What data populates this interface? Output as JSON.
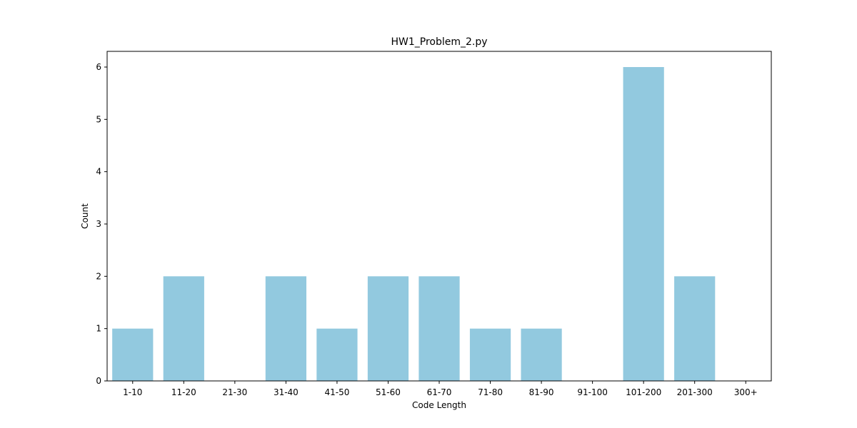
{
  "chart_data": {
    "type": "bar",
    "title": "HW1_Problem_2.py",
    "xlabel": "Code Length",
    "ylabel": "Count",
    "categories": [
      "1-10",
      "11-20",
      "21-30",
      "31-40",
      "41-50",
      "51-60",
      "61-70",
      "71-80",
      "81-90",
      "91-100",
      "101-200",
      "201-300",
      "300+"
    ],
    "values": [
      1,
      2,
      0,
      2,
      1,
      2,
      2,
      1,
      1,
      0,
      6,
      2,
      0
    ],
    "ylim": [
      0,
      6.3
    ],
    "yticks": [
      0,
      1,
      2,
      3,
      4,
      5,
      6
    ],
    "bar_color": "#92c9df",
    "grid": false,
    "legend": "none"
  }
}
